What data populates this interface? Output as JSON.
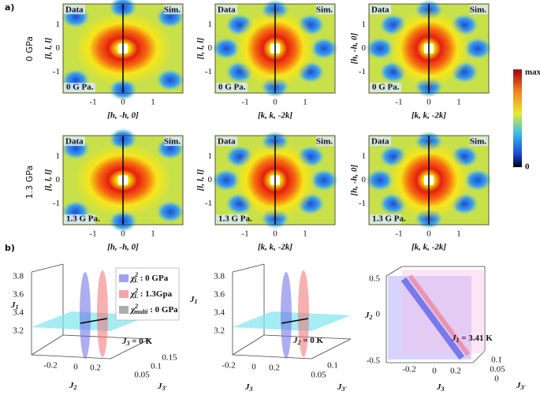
{
  "part_a": {
    "label": "a)",
    "rows": [
      {
        "label": "0 GPa",
        "panels": [
          {
            "data": "Data",
            "sim": "Sim.",
            "pressure": "0 G Pa.",
            "ylabel": "[l, l, l]",
            "xlabel": "[h, -h, 0]",
            "xticks": [
              "-1",
              "0",
              "1"
            ],
            "yticks": [
              "1",
              "0",
              "-1"
            ]
          },
          {
            "data": "Data",
            "sim": "Sim.",
            "pressure": "0 G Pa.",
            "ylabel": "[l, l, l]",
            "xlabel": "[k, k, -2k]",
            "xticks": [
              "-1",
              "0",
              "1"
            ],
            "yticks": [
              "1",
              "0",
              "-1"
            ]
          },
          {
            "data": "Data",
            "sim": "Sim.",
            "pressure": "0 G Pa.",
            "ylabel": "[h, -h, 0]",
            "xlabel": "[k, k, -2k]",
            "xticks": [
              "-1",
              "0",
              "1"
            ],
            "yticks": [
              "1",
              "0",
              "-1"
            ]
          }
        ]
      },
      {
        "label": "1.3 GPa",
        "panels": [
          {
            "data": "Data",
            "sim": "Sim.",
            "pressure": "1.3 G Pa.",
            "ylabel": "[l, l, l]",
            "xlabel": "[h, -h, 0]",
            "xticks": [
              "-1",
              "0",
              "1"
            ],
            "yticks": [
              "1",
              "0",
              "-1"
            ]
          },
          {
            "data": "Data",
            "sim": "Sim.",
            "pressure": "1.3 G Pa.",
            "ylabel": "[l, l, l]",
            "xlabel": "[k, k, -2k]",
            "xticks": [
              "-1",
              "0",
              "1"
            ],
            "yticks": [
              "1",
              "0",
              "-1"
            ]
          },
          {
            "data": "Data",
            "sim": "Sim.",
            "pressure": "1.3 G Pa.",
            "ylabel": "[h, -h, 0]",
            "xlabel": "[k, k, -2k]",
            "xticks": [
              "-1",
              "0",
              "1"
            ],
            "yticks": [
              "1",
              "0",
              "-1"
            ]
          }
        ]
      }
    ],
    "colorbar": {
      "max": "max",
      "min": "0"
    }
  },
  "part_b": {
    "label": "b)",
    "plots": [
      {
        "zlabel": {
          "s": "J",
          "sub": "1"
        },
        "zticks": [
          "3.8",
          "3.6",
          "3.4",
          "3.2"
        ],
        "xlabel": {
          "s": "J",
          "sub": "2"
        },
        "xticks": [
          "-0.2",
          "0",
          "0.2"
        ],
        "ylabel": {
          "s": "J",
          "sub": "3'"
        },
        "yticks": [
          "0.05",
          "0.1",
          "0.15"
        ],
        "annotation": {
          "s": "J",
          "sub": "3",
          "rest": " = 0 K"
        },
        "legend": [
          {
            "s": "χ",
            "sup": "2",
            "sub": "L",
            "rest": " : 0 GPa"
          },
          {
            "s": "χ",
            "sup": "2",
            "sub": "L",
            "rest": " : 1.3Gpa"
          },
          {
            "s": "χ",
            "sup": "2",
            "sub": "multi",
            "rest": " : 0 GPa"
          }
        ]
      },
      {
        "zlabel": {
          "s": "J",
          "sub": "1"
        },
        "zticks": [
          "3.8",
          "3.6",
          "3.4",
          "3.2"
        ],
        "xlabel": {
          "s": "J",
          "sub": "3"
        },
        "xticks": [
          "-0.2",
          "0",
          "0.2"
        ],
        "ylabel": {
          "s": "J",
          "sub": "3'"
        },
        "yticks": [
          "0.05",
          "0.1"
        ],
        "annotation": {
          "s": "J",
          "sub": "2",
          "rest": " = 0 K"
        }
      },
      {
        "zlabel": {
          "s": "J",
          "sub": "2"
        },
        "zticks": [
          "0.5",
          "0",
          "-0.5"
        ],
        "xlabel": {
          "s": "J",
          "sub": "3"
        },
        "xticks": [
          "-0.2",
          "0",
          "0.2"
        ],
        "ylabel": {
          "s": "J",
          "sub": "3'"
        },
        "yticks": [
          "0.1",
          "0.05",
          "0"
        ],
        "annotation": {
          "s": "J",
          "sub": "1",
          "rest": " = 3.41 K"
        }
      }
    ]
  }
}
